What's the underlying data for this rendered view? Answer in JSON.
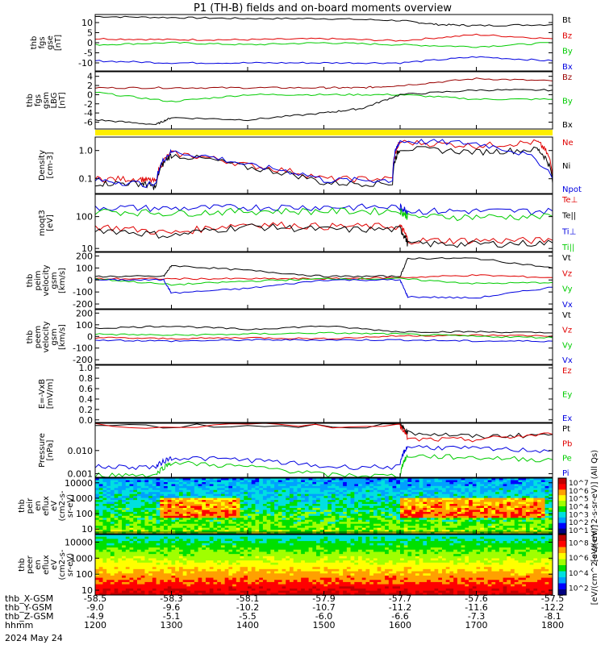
{
  "title": "P1 (TH-B) fields and on-board moments overview",
  "date": "2024 May 24",
  "colors": {
    "black": "#000000",
    "red": "#e00000",
    "green": "#00cc00",
    "blue": "#0000e0",
    "yellow": "#ffee00",
    "darkred": "#990000"
  },
  "chart_data": [
    {
      "type": "line",
      "name": "fgs-gse",
      "ylabel": [
        "thb",
        "fgs",
        "gse",
        "[nT]"
      ],
      "ylim": [
        -14,
        14
      ],
      "yticks": [
        -10,
        -5,
        0,
        5,
        10
      ],
      "series": [
        {
          "name": "Bt",
          "color": "black",
          "x": [
            1200,
            1300,
            1400,
            1500,
            1600,
            1650,
            1700,
            1800
          ],
          "y": [
            13,
            12.5,
            12,
            12,
            11,
            9,
            8.5,
            9
          ]
        },
        {
          "name": "Bz",
          "color": "red",
          "x": [
            1200,
            1300,
            1400,
            1500,
            1600,
            1700,
            1800
          ],
          "y": [
            2,
            1.5,
            1.5,
            2,
            1,
            4,
            2
          ]
        },
        {
          "name": "By",
          "color": "green",
          "x": [
            1200,
            1300,
            1400,
            1500,
            1600,
            1700,
            1800
          ],
          "y": [
            -1,
            0,
            -1,
            0,
            -1,
            -2,
            0
          ]
        },
        {
          "name": "Bx",
          "color": "blue",
          "x": [
            1200,
            1300,
            1400,
            1500,
            1600,
            1700,
            1800
          ],
          "y": [
            -9,
            -10,
            -10,
            -10,
            -10,
            -7,
            -9
          ]
        }
      ]
    },
    {
      "type": "line",
      "name": "fgs-gsm-lbg",
      "ylabel": [
        "thb",
        "fgs",
        "gsm",
        "LBG",
        "[nT]"
      ],
      "ylim": [
        -7.5,
        5
      ],
      "yticks": [
        -6,
        -4,
        -2,
        0,
        2,
        4
      ],
      "series": [
        {
          "name": "Bz",
          "color": "darkred",
          "x": [
            1200,
            1300,
            1400,
            1500,
            1550,
            1600,
            1700,
            1800
          ],
          "y": [
            1.5,
            1.5,
            1.5,
            1.5,
            1.5,
            2,
            3.5,
            3
          ]
        },
        {
          "name": "By",
          "color": "green",
          "x": [
            1200,
            1300,
            1400,
            1500,
            1600,
            1700,
            1800
          ],
          "y": [
            0.5,
            -1.5,
            0,
            0,
            0,
            -1,
            -1
          ]
        },
        {
          "name": "Bx",
          "color": "black",
          "x": [
            1200,
            1280,
            1300,
            1400,
            1500,
            1550,
            1600,
            1700,
            1800
          ],
          "y": [
            -5.5,
            -6.5,
            -5,
            -5.5,
            -4,
            -3,
            0,
            1,
            1
          ]
        }
      ]
    },
    {
      "type": "line",
      "name": "density",
      "ylabel": [
        "Density",
        "[cm-3]"
      ],
      "ylog": true,
      "ylim": [
        0.03,
        3
      ],
      "yticklabels": [
        "0.1",
        "1.0"
      ],
      "yticks": [
        0.1,
        1.0
      ],
      "series": [
        {
          "name": "Ne",
          "color": "red",
          "x": [
            1200,
            1260,
            1280,
            1300,
            1400,
            1500,
            1590,
            1600,
            1700,
            1780,
            1800
          ],
          "y": [
            0.1,
            0.1,
            0.08,
            0.8,
            0.3,
            0.1,
            0.1,
            2.0,
            1.5,
            2.0,
            0.1
          ]
        },
        {
          "name": "Ni",
          "color": "black",
          "x": [
            1200,
            1260,
            1280,
            1300,
            1400,
            1500,
            1590,
            1600,
            1700,
            1780,
            1800
          ],
          "y": [
            0.07,
            0.07,
            0.05,
            0.7,
            0.25,
            0.07,
            0.07,
            1.2,
            0.9,
            1.1,
            0.07
          ]
        },
        {
          "name": "Npot",
          "color": "blue",
          "x": [
            1200,
            1280,
            1300,
            1400,
            1500,
            1590,
            1600,
            1700,
            1800
          ],
          "y": [
            0.09,
            0.06,
            0.9,
            0.3,
            0.09,
            0.09,
            2.2,
            1.8,
            0.1
          ]
        }
      ]
    },
    {
      "type": "line",
      "name": "temperature",
      "ylabel": [
        "moqt3",
        "[eV]"
      ],
      "ylog": true,
      "ylim": [
        8,
        500
      ],
      "yticklabels": [
        "10",
        "100"
      ],
      "yticks": [
        10,
        100
      ],
      "series": [
        {
          "name": "Te⊥",
          "color": "red",
          "x": [
            1200,
            1300,
            1400,
            1500,
            1600,
            1610,
            1700,
            1800
          ],
          "y": [
            50,
            30,
            60,
            50,
            50,
            18,
            18,
            18
          ]
        },
        {
          "name": "Te||",
          "color": "black",
          "x": [
            1200,
            1300,
            1400,
            1500,
            1600,
            1610,
            1700,
            1800
          ],
          "y": [
            40,
            25,
            50,
            40,
            40,
            14,
            14,
            15
          ]
        },
        {
          "name": "Ti⊥",
          "color": "blue",
          "x": [
            1200,
            1300,
            1400,
            1500,
            1600,
            1610,
            1700,
            1800
          ],
          "y": [
            200,
            180,
            200,
            200,
            200,
            150,
            150,
            150
          ]
        },
        {
          "name": "Ti||",
          "color": "green",
          "x": [
            1200,
            1300,
            1400,
            1500,
            1600,
            1610,
            1700,
            1800
          ],
          "y": [
            150,
            130,
            150,
            150,
            150,
            100,
            100,
            100
          ]
        }
      ]
    },
    {
      "type": "line",
      "name": "peim-velocity",
      "ylabel": [
        "thb",
        "peim",
        "velocity",
        "gsm",
        "[km/s]"
      ],
      "ylim": [
        -240,
        230
      ],
      "yticks": [
        -200,
        -100,
        0,
        100,
        200
      ],
      "series": [
        {
          "name": "Vt",
          "color": "black",
          "x": [
            1200,
            1290,
            1300,
            1400,
            1500,
            1600,
            1610,
            1700,
            1800
          ],
          "y": [
            30,
            30,
            120,
            80,
            30,
            30,
            180,
            180,
            100
          ]
        },
        {
          "name": "Vz",
          "color": "red",
          "x": [
            1200,
            1300,
            1400,
            1500,
            1600,
            1700,
            1800
          ],
          "y": [
            10,
            10,
            10,
            10,
            20,
            40,
            20
          ]
        },
        {
          "name": "Vy",
          "color": "green",
          "x": [
            1200,
            1300,
            1400,
            1500,
            1600,
            1700,
            1800
          ],
          "y": [
            10,
            -40,
            -10,
            10,
            10,
            -30,
            -20
          ]
        },
        {
          "name": "Vx",
          "color": "blue",
          "x": [
            1200,
            1290,
            1300,
            1400,
            1500,
            1600,
            1610,
            1700,
            1800
          ],
          "y": [
            0,
            0,
            -110,
            -70,
            0,
            0,
            -140,
            -150,
            -60
          ]
        }
      ]
    },
    {
      "type": "line",
      "name": "peem-velocity",
      "ylabel": [
        "thb",
        "peem",
        "velocity",
        "gsm",
        "[km/s]"
      ],
      "ylim": [
        -240,
        230
      ],
      "yticks": [
        -200,
        -100,
        0,
        100,
        200
      ],
      "series": [
        {
          "name": "Vt",
          "color": "black",
          "x": [
            1200,
            1300,
            1400,
            1500,
            1600,
            1700,
            1800
          ],
          "y": [
            70,
            90,
            60,
            90,
            40,
            40,
            30
          ]
        },
        {
          "name": "Vz",
          "color": "red",
          "x": [
            1200,
            1300,
            1400,
            1500,
            1600,
            1700,
            1800
          ],
          "y": [
            -10,
            -20,
            -10,
            -20,
            5,
            10,
            5
          ]
        },
        {
          "name": "Vy",
          "color": "green",
          "x": [
            1200,
            1300,
            1400,
            1500,
            1600,
            1700,
            1800
          ],
          "y": [
            20,
            10,
            20,
            30,
            20,
            0,
            -10
          ]
        },
        {
          "name": "Vx",
          "color": "blue",
          "x": [
            1200,
            1300,
            1400,
            1500,
            1600,
            1700,
            1800
          ],
          "y": [
            -30,
            -40,
            -30,
            -30,
            -30,
            -40,
            -40
          ]
        }
      ]
    },
    {
      "type": "line",
      "name": "efield",
      "ylabel": [
        "E=-VxB",
        "[mV/m]"
      ],
      "ylim": [
        -0.05,
        1.05
      ],
      "yticks": [
        0.0,
        0.2,
        0.4,
        0.6,
        0.8,
        1.0
      ],
      "yticklabels": [
        "0.0",
        "0.2",
        "0.4",
        "0.6",
        "0.8",
        "1.0"
      ],
      "series": [
        {
          "name": "Ez",
          "color": "red",
          "x": [],
          "y": []
        },
        {
          "name": "Ey",
          "color": "green",
          "x": [],
          "y": []
        },
        {
          "name": "Ex",
          "color": "blue",
          "x": [],
          "y": []
        }
      ]
    },
    {
      "type": "line",
      "name": "pressure",
      "ylabel": [
        "Pressure",
        "[nPa]"
      ],
      "ylog": true,
      "ylim": [
        0.0007,
        0.15
      ],
      "yticks": [
        0.001,
        0.01
      ],
      "yticklabels": [
        "0.001",
        "0.010"
      ],
      "series": [
        {
          "name": "Pt",
          "color": "black",
          "x": [
            1200,
            1600,
            1610,
            1700,
            1800
          ],
          "y": [
            0.12,
            0.12,
            0.06,
            0.04,
            0.05
          ]
        },
        {
          "name": "Pb",
          "color": "red",
          "x": [
            1200,
            1600,
            1610,
            1700,
            1800
          ],
          "y": [
            0.12,
            0.12,
            0.03,
            0.03,
            0.05
          ]
        },
        {
          "name": "Pe",
          "color": "green",
          "x": [
            1200,
            1280,
            1300,
            1400,
            1500,
            1600,
            1610,
            1700,
            1800
          ],
          "y": [
            0.0009,
            0.0009,
            0.003,
            0.002,
            0.0009,
            0.0008,
            0.006,
            0.005,
            0.004
          ]
        },
        {
          "name": "Pi",
          "color": "blue",
          "x": [
            1200,
            1280,
            1300,
            1400,
            1500,
            1600,
            1610,
            1700,
            1800
          ],
          "y": [
            0.002,
            0.002,
            0.005,
            0.004,
            0.002,
            0.002,
            0.015,
            0.012,
            0.01
          ]
        }
      ]
    },
    {
      "type": "heatmap",
      "name": "peir-spectrogram",
      "ylabel": [
        "thb",
        "peir",
        "en",
        "eflux",
        "eV",
        "(cm2-s-",
        "sr-eV)"
      ],
      "ylog": true,
      "ylim": [
        5,
        20000
      ],
      "yticks": [
        10,
        100,
        1000,
        10000
      ],
      "yticklabels": [
        "10",
        "100",
        "1000",
        "10000"
      ],
      "colorbar": {
        "label": "[eV/(cm^2-s-sr-eV)] (All Qs)",
        "ticks": [
          "10^1",
          "10^2",
          "10^3",
          "10^4",
          "10^5",
          "10^6",
          "10^7"
        ]
      }
    },
    {
      "type": "heatmap",
      "name": "peer-spectrogram",
      "ylabel": [
        "thb",
        "peer",
        "en",
        "eflux",
        "eV",
        "(cm2-s-",
        "sr-eV)"
      ],
      "ylog": true,
      "ylim": [
        5,
        30000
      ],
      "yticks": [
        10,
        100,
        1000,
        10000
      ],
      "yticklabels": [
        "10",
        "100",
        "1000",
        "10000"
      ],
      "colorbar": {
        "label": "[eV/(cm^2-s-sr-eV)]",
        "ticks": [
          "10^2",
          "10^4",
          "10^6",
          "10^8"
        ]
      }
    }
  ],
  "xaxis": {
    "range": [
      1200,
      1800
    ],
    "rows": [
      {
        "label": "thb_X-GSM",
        "values": [
          "-58.5",
          "-58.3",
          "-58.1",
          "-57.9",
          "-57.7",
          "-57.6",
          "-57.5"
        ]
      },
      {
        "label": "thb_Y-GSM",
        "values": [
          "-9.0",
          "-9.6",
          "-10.2",
          "-10.7",
          "-11.2",
          "-11.6",
          "-12.2"
        ]
      },
      {
        "label": "thb_Z-GSM",
        "values": [
          "-4.9",
          "-5.1",
          "-5.5",
          "-6.0",
          "-6.6",
          "-7.3",
          "-8.1"
        ]
      },
      {
        "label": "hhmm",
        "values": [
          "1200",
          "1300",
          "1400",
          "1500",
          "1600",
          "1700",
          "1800"
        ]
      }
    ]
  }
}
